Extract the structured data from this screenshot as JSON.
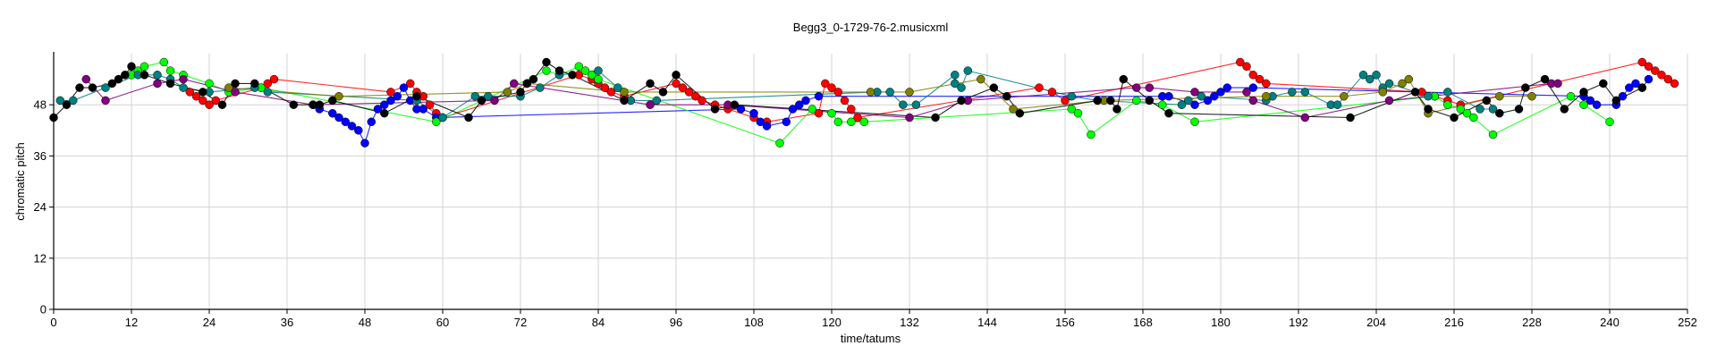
{
  "chart_data": {
    "type": "scatter",
    "title": "Begg3_0-1729-76-2.musicxml",
    "xlabel": "time/tatums",
    "ylabel": "chromatic pitch",
    "xlim": [
      0,
      252
    ],
    "ylim": [
      0,
      60
    ],
    "xticks": [
      0,
      12,
      24,
      36,
      48,
      60,
      72,
      84,
      96,
      108,
      120,
      132,
      144,
      156,
      168,
      180,
      192,
      204,
      216,
      228,
      240,
      252
    ],
    "yticks": [
      0,
      12,
      24,
      36,
      48
    ],
    "grid": true,
    "legend": "none",
    "series": [
      {
        "color": "#ff0000",
        "points": [
          [
            21,
            51
          ],
          [
            22,
            50
          ],
          [
            23,
            49
          ],
          [
            24,
            48
          ],
          [
            25,
            49
          ],
          [
            32,
            52
          ],
          [
            33,
            53
          ],
          [
            34,
            54
          ],
          [
            52,
            51
          ],
          [
            55,
            53
          ],
          [
            56,
            51
          ],
          [
            57,
            50
          ],
          [
            58,
            48
          ],
          [
            59,
            46
          ],
          [
            60,
            45
          ],
          [
            81,
            55
          ],
          [
            83,
            54
          ],
          [
            84,
            53
          ],
          [
            85,
            52
          ],
          [
            86,
            51
          ],
          [
            88,
            50
          ],
          [
            96,
            53
          ],
          [
            97,
            52
          ],
          [
            98,
            51
          ],
          [
            99,
            50
          ],
          [
            100,
            49
          ],
          [
            102,
            48
          ],
          [
            104,
            47
          ],
          [
            108,
            45
          ],
          [
            110,
            44
          ],
          [
            118,
            46
          ],
          [
            119,
            53
          ],
          [
            120,
            52
          ],
          [
            121,
            51
          ],
          [
            122,
            49
          ],
          [
            123,
            47
          ],
          [
            124,
            45
          ],
          [
            152,
            52
          ],
          [
            154,
            51
          ],
          [
            156,
            49
          ],
          [
            183,
            58
          ],
          [
            184,
            57
          ],
          [
            185,
            55
          ],
          [
            186,
            54
          ],
          [
            187,
            53
          ],
          [
            211,
            51
          ],
          [
            213,
            50
          ],
          [
            215,
            49
          ],
          [
            217,
            48
          ],
          [
            245,
            58
          ],
          [
            246,
            57
          ],
          [
            247,
            56
          ],
          [
            248,
            55
          ],
          [
            249,
            54
          ],
          [
            250,
            53
          ]
        ]
      },
      {
        "color": "#0000ff",
        "points": [
          [
            40,
            48
          ],
          [
            41,
            47
          ],
          [
            43,
            46
          ],
          [
            44,
            45
          ],
          [
            45,
            44
          ],
          [
            46,
            43
          ],
          [
            47,
            42
          ],
          [
            48,
            39
          ],
          [
            49,
            44
          ],
          [
            50,
            47
          ],
          [
            51,
            48
          ],
          [
            52,
            49
          ],
          [
            53,
            50
          ],
          [
            54,
            52
          ],
          [
            55,
            49
          ],
          [
            56,
            47
          ],
          [
            57,
            47
          ],
          [
            59,
            45
          ],
          [
            106,
            47
          ],
          [
            108,
            46
          ],
          [
            109,
            44
          ],
          [
            110,
            43
          ],
          [
            113,
            44
          ],
          [
            114,
            47
          ],
          [
            115,
            48
          ],
          [
            116,
            49
          ],
          [
            118,
            50
          ],
          [
            171,
            50
          ],
          [
            172,
            50
          ],
          [
            176,
            48
          ],
          [
            178,
            49
          ],
          [
            179,
            50
          ],
          [
            180,
            51
          ],
          [
            181,
            52
          ],
          [
            185,
            52
          ],
          [
            236,
            50
          ],
          [
            237,
            49
          ],
          [
            238,
            48
          ],
          [
            241,
            48
          ],
          [
            242,
            50
          ],
          [
            243,
            52
          ],
          [
            244,
            53
          ],
          [
            245,
            52
          ],
          [
            246,
            54
          ]
        ]
      },
      {
        "color": "#00ff00",
        "points": [
          [
            12,
            55
          ],
          [
            13,
            56
          ],
          [
            14,
            57
          ],
          [
            17,
            58
          ],
          [
            18,
            56
          ],
          [
            20,
            55
          ],
          [
            24,
            53
          ],
          [
            27,
            51
          ],
          [
            32,
            52
          ],
          [
            59,
            44
          ],
          [
            76,
            56
          ],
          [
            78,
            55
          ],
          [
            81,
            57
          ],
          [
            82,
            56
          ],
          [
            83,
            55
          ],
          [
            84,
            54
          ],
          [
            112,
            39
          ],
          [
            117,
            47
          ],
          [
            120,
            46
          ],
          [
            121,
            44
          ],
          [
            123,
            44
          ],
          [
            125,
            44
          ],
          [
            157,
            47
          ],
          [
            158,
            46
          ],
          [
            160,
            41
          ],
          [
            167,
            49
          ],
          [
            171,
            48
          ],
          [
            176,
            44
          ],
          [
            213,
            50
          ],
          [
            215,
            48
          ],
          [
            217,
            47
          ],
          [
            218,
            46
          ],
          [
            219,
            45
          ],
          [
            222,
            41
          ],
          [
            234,
            50
          ],
          [
            236,
            48
          ],
          [
            240,
            44
          ]
        ]
      },
      {
        "color": "#008080",
        "points": [
          [
            1,
            49
          ],
          [
            3,
            49
          ],
          [
            8,
            52
          ],
          [
            13,
            55
          ],
          [
            16,
            55
          ],
          [
            18,
            54
          ],
          [
            20,
            52
          ],
          [
            24,
            51
          ],
          [
            31,
            52
          ],
          [
            33,
            51
          ],
          [
            56,
            49
          ],
          [
            60,
            45
          ],
          [
            65,
            50
          ],
          [
            67,
            50
          ],
          [
            72,
            50
          ],
          [
            75,
            52
          ],
          [
            78,
            55
          ],
          [
            84,
            56
          ],
          [
            87,
            52
          ],
          [
            89,
            49
          ],
          [
            93,
            49
          ],
          [
            127,
            51
          ],
          [
            129,
            51
          ],
          [
            131,
            48
          ],
          [
            133,
            48
          ],
          [
            139,
            55
          ],
          [
            139,
            53
          ],
          [
            140,
            52
          ],
          [
            141,
            56
          ],
          [
            157,
            50
          ],
          [
            161,
            49
          ],
          [
            174,
            48
          ],
          [
            175,
            49
          ],
          [
            177,
            50
          ],
          [
            187,
            49
          ],
          [
            188,
            50
          ],
          [
            191,
            51
          ],
          [
            193,
            51
          ],
          [
            197,
            48
          ],
          [
            198,
            48
          ],
          [
            202,
            55
          ],
          [
            203,
            54
          ],
          [
            204,
            55
          ],
          [
            205,
            52
          ],
          [
            206,
            53
          ],
          [
            212,
            50
          ],
          [
            215,
            51
          ],
          [
            220,
            47
          ],
          [
            222,
            47
          ]
        ]
      },
      {
        "color": "#808000",
        "points": [
          [
            27,
            52
          ],
          [
            44,
            50
          ],
          [
            70,
            51
          ],
          [
            73,
            53
          ],
          [
            88,
            51
          ],
          [
            126,
            51
          ],
          [
            132,
            51
          ],
          [
            143,
            54
          ],
          [
            148,
            47
          ],
          [
            162,
            49
          ],
          [
            187,
            50
          ],
          [
            199,
            50
          ],
          [
            205,
            51
          ],
          [
            208,
            53
          ],
          [
            209,
            54
          ],
          [
            212,
            46
          ],
          [
            223,
            50
          ],
          [
            228,
            50
          ]
        ]
      },
      {
        "color": "#800080",
        "points": [
          [
            5,
            54
          ],
          [
            8,
            49
          ],
          [
            16,
            53
          ],
          [
            20,
            54
          ],
          [
            28,
            51
          ],
          [
            40,
            48
          ],
          [
            68,
            49
          ],
          [
            71,
            53
          ],
          [
            92,
            48
          ],
          [
            104,
            48
          ],
          [
            132,
            45
          ],
          [
            141,
            49
          ],
          [
            167,
            52
          ],
          [
            169,
            52
          ],
          [
            176,
            51
          ],
          [
            184,
            51
          ],
          [
            185,
            49
          ],
          [
            193,
            45
          ],
          [
            206,
            49
          ],
          [
            231,
            53
          ],
          [
            232,
            53
          ]
        ]
      },
      {
        "color": "#000000",
        "points": [
          [
            0,
            45
          ],
          [
            2,
            48
          ],
          [
            4,
            52
          ],
          [
            6,
            52
          ],
          [
            9,
            53
          ],
          [
            10,
            54
          ],
          [
            11,
            55
          ],
          [
            12,
            57
          ],
          [
            14,
            55
          ],
          [
            18,
            53
          ],
          [
            23,
            51
          ],
          [
            26,
            48
          ],
          [
            28,
            53
          ],
          [
            31,
            53
          ],
          [
            37,
            48
          ],
          [
            40,
            48
          ],
          [
            41,
            48
          ],
          [
            43,
            49
          ],
          [
            51,
            46
          ],
          [
            56,
            50
          ],
          [
            64,
            45
          ],
          [
            66,
            49
          ],
          [
            72,
            51
          ],
          [
            73,
            53
          ],
          [
            74,
            54
          ],
          [
            76,
            58
          ],
          [
            78,
            56
          ],
          [
            80,
            55
          ],
          [
            88,
            49
          ],
          [
            92,
            53
          ],
          [
            94,
            51
          ],
          [
            96,
            55
          ],
          [
            102,
            47
          ],
          [
            105,
            48
          ],
          [
            136,
            45
          ],
          [
            140,
            49
          ],
          [
            145,
            52
          ],
          [
            147,
            50
          ],
          [
            149,
            46
          ],
          [
            161,
            49
          ],
          [
            163,
            49
          ],
          [
            164,
            47
          ],
          [
            165,
            54
          ],
          [
            169,
            49
          ],
          [
            172,
            46
          ],
          [
            200,
            45
          ],
          [
            210,
            51
          ],
          [
            212,
            47
          ],
          [
            216,
            45
          ],
          [
            221,
            49
          ],
          [
            223,
            46
          ],
          [
            226,
            47
          ],
          [
            227,
            52
          ],
          [
            230,
            54
          ],
          [
            233,
            47
          ],
          [
            236,
            51
          ],
          [
            239,
            53
          ],
          [
            241,
            49
          ],
          [
            245,
            52
          ]
        ]
      }
    ]
  }
}
